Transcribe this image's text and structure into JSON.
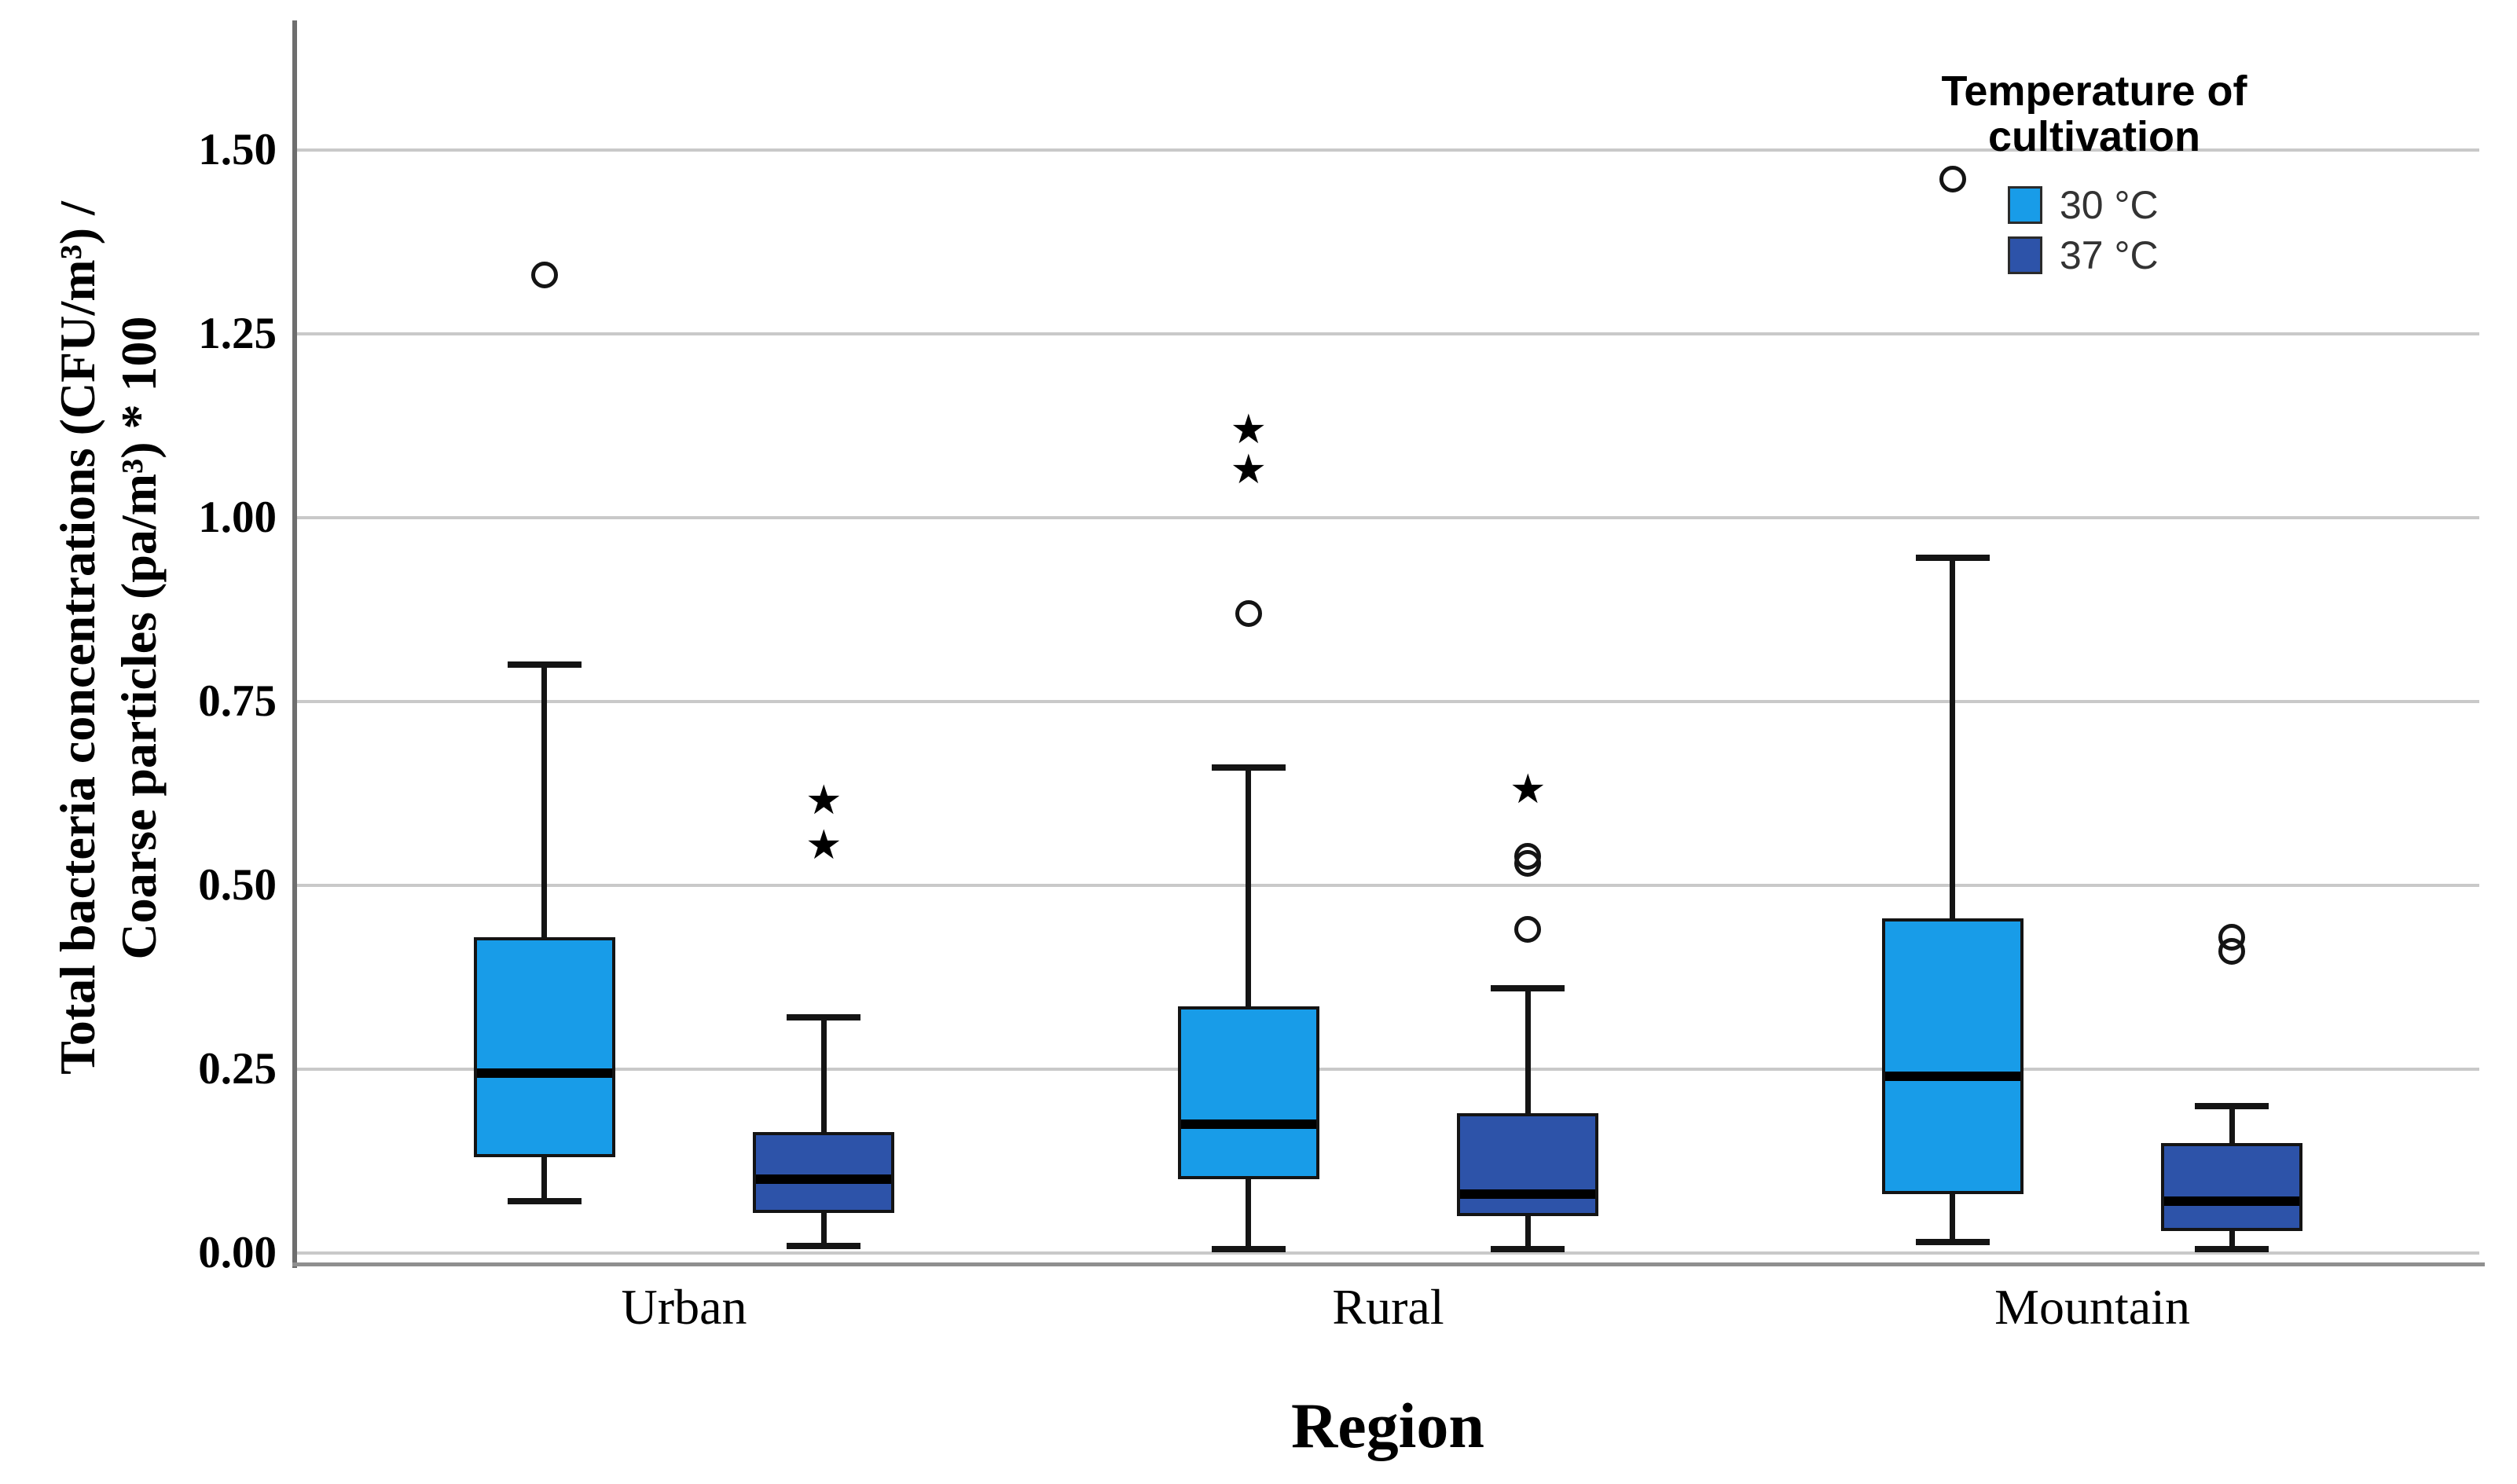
{
  "chart_data": {
    "type": "boxplot",
    "title": "",
    "xlabel": "Region",
    "ylabel_lines": [
      "Total bacteria concentrations (CFU/m³) /",
      "Coarse particles (pa/m³) * 100"
    ],
    "categories": [
      "Urban",
      "Rural",
      "Mountain"
    ],
    "y_ticks": [
      "0.00",
      "0.25",
      "0.50",
      "0.75",
      "1.00",
      "1.25",
      "1.50"
    ],
    "ylim": [
      -0.02,
      1.67
    ],
    "grid": true,
    "legend_position": "top-right",
    "marker_meaning": {
      "circle": "outlier",
      "star": "extreme value"
    },
    "legend": {
      "title_lines": [
        "Temperature of",
        "cultivation"
      ],
      "entries": [
        {
          "label": "30 °C",
          "color": "#189CE8"
        },
        {
          "label": "37 °C",
          "color": "#2D53A9"
        }
      ]
    },
    "series": [
      {
        "name": "30 °C",
        "color": "#189CE8",
        "boxes": [
          {
            "category": "Urban",
            "low": 0.07,
            "q1": 0.13,
            "median": 0.245,
            "q3": 0.43,
            "high": 0.8,
            "outliers": [
              1.33
            ],
            "extremes": []
          },
          {
            "category": "Rural",
            "low": 0.005,
            "q1": 0.1,
            "median": 0.175,
            "q3": 0.335,
            "high": 0.66,
            "outliers": [
              0.87
            ],
            "extremes": [
              1.065,
              1.12
            ]
          },
          {
            "category": "Mountain",
            "low": 0.015,
            "q1": 0.08,
            "median": 0.24,
            "q3": 0.455,
            "high": 0.945,
            "outliers": [
              1.46
            ],
            "extremes": []
          }
        ]
      },
      {
        "name": "37 °C",
        "color": "#2D53A9",
        "boxes": [
          {
            "category": "Urban",
            "low": 0.01,
            "q1": 0.055,
            "median": 0.1,
            "q3": 0.165,
            "high": 0.32,
            "outliers": [],
            "extremes": [
              0.555,
              0.615
            ]
          },
          {
            "category": "Rural",
            "low": 0.005,
            "q1": 0.05,
            "median": 0.08,
            "q3": 0.19,
            "high": 0.36,
            "outliers": [
              0.44,
              0.53,
              0.54
            ],
            "extremes": [
              0.63
            ]
          },
          {
            "category": "Mountain",
            "low": 0.005,
            "q1": 0.03,
            "median": 0.07,
            "q3": 0.15,
            "high": 0.2,
            "outliers": [
              0.41,
              0.43
            ],
            "extremes": []
          }
        ]
      }
    ]
  }
}
